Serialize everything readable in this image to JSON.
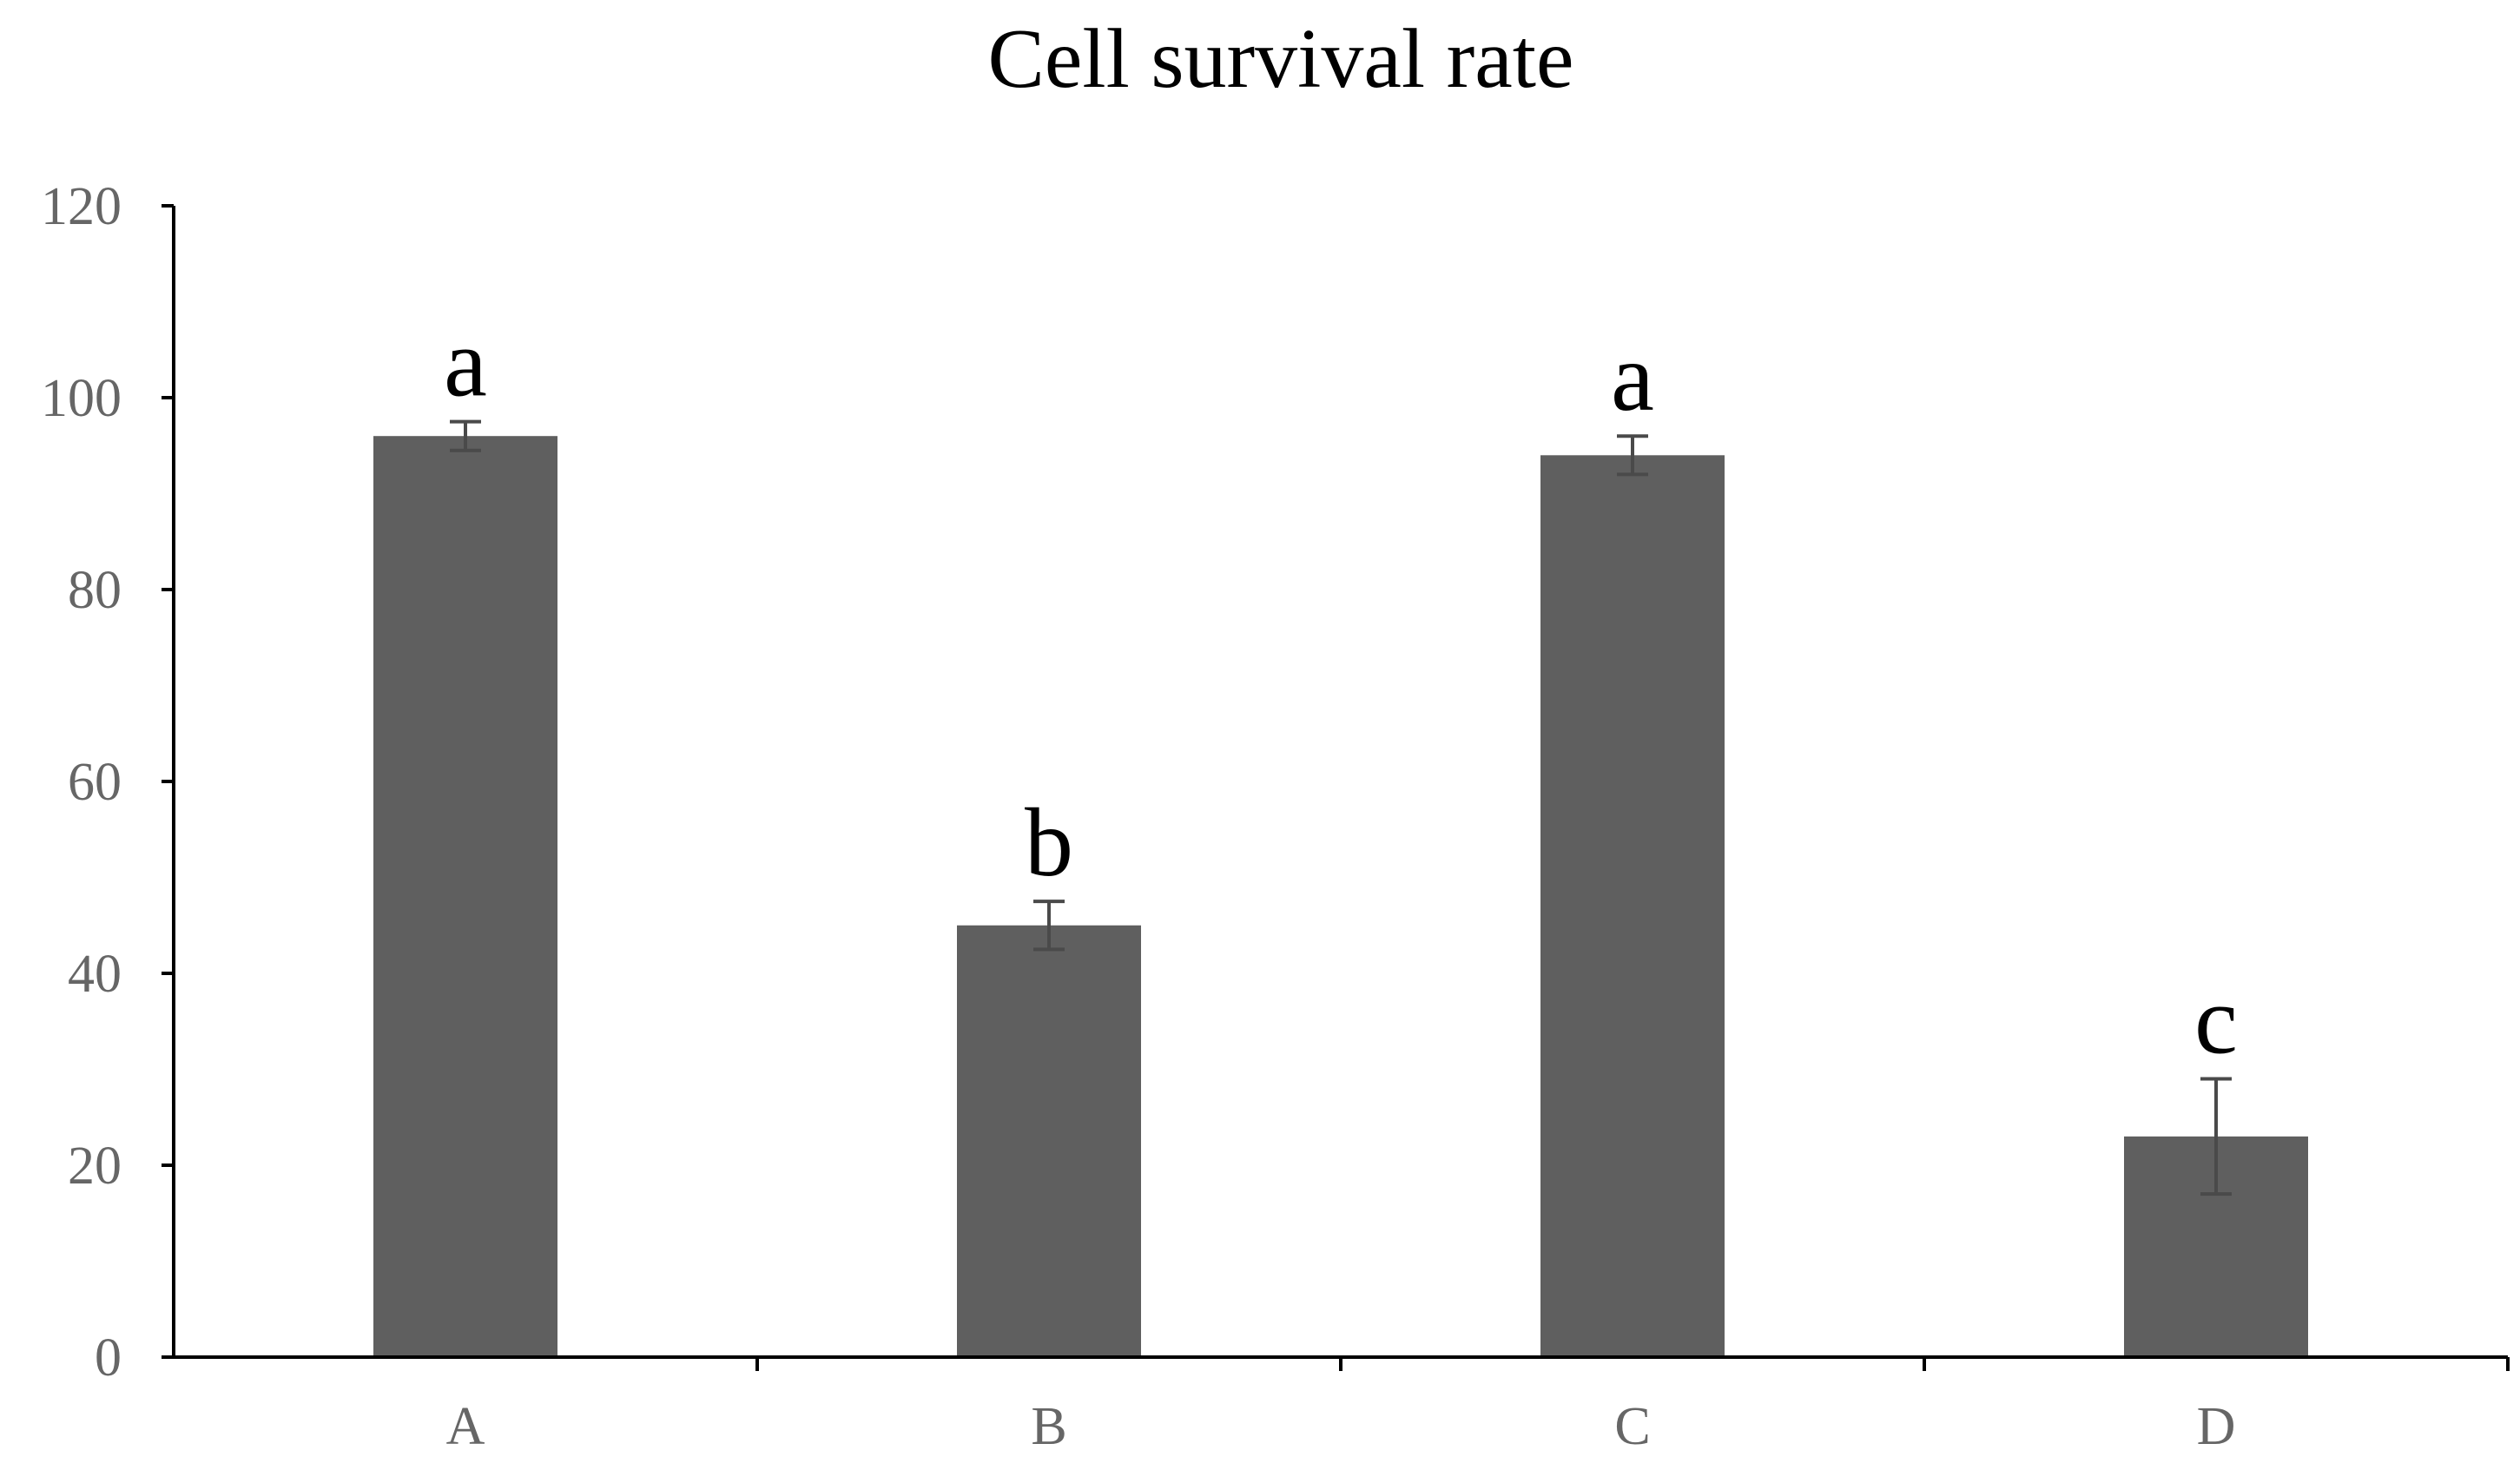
{
  "chart_data": {
    "type": "bar",
    "title": "Cell survival rate",
    "xlabel": "",
    "ylabel": "",
    "categories": [
      "A",
      "B",
      "C",
      "D"
    ],
    "values": [
      96,
      45,
      94,
      23
    ],
    "errors": [
      1.5,
      2.5,
      2.0,
      6.0
    ],
    "significance_labels": [
      "a",
      "b",
      "a",
      "c"
    ],
    "ylim": [
      0,
      120
    ],
    "yticks": [
      0,
      20,
      40,
      60,
      80,
      100,
      120
    ],
    "ytick_labels": [
      "0",
      "20",
      "40",
      "60",
      "80",
      "100",
      "120"
    ],
    "grid": false,
    "bar_color": "#5f5f5f",
    "error_bar_color": "#4a4a4a"
  }
}
